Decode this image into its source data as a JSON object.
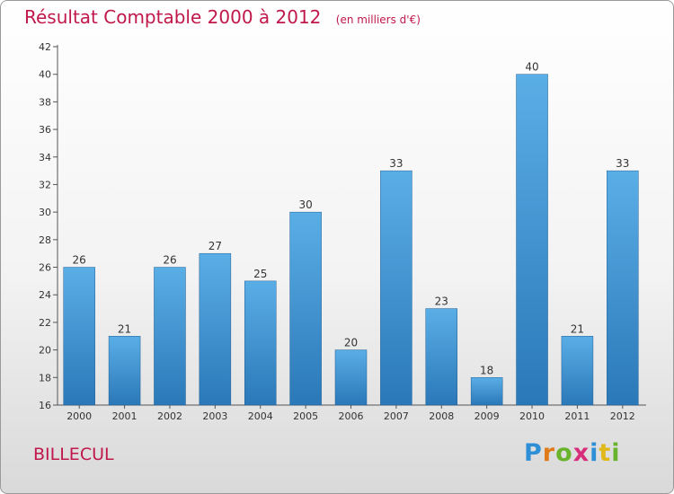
{
  "title": "Résultat Comptable 2000 à 2012",
  "subtitle": "(en milliers d'€)",
  "commune": "BILLECUL",
  "logo": {
    "letters": [
      "P",
      "r",
      "o",
      "x",
      "i",
      "t",
      "i"
    ],
    "colors": [
      "#2e8fd6",
      "#e07b1a",
      "#6ab42d",
      "#d62e7a",
      "#2e8fd6",
      "#e0b81a",
      "#6ab42d"
    ]
  },
  "colors": {
    "bar_top": "#5aaee6",
    "bar_bottom": "#2b78b8",
    "text": "#333333",
    "accent": "#c0184b"
  },
  "chart_data": {
    "type": "bar",
    "title": "Résultat Comptable 2000 à 2012",
    "xlabel": "",
    "ylabel": "",
    "categories": [
      "2000",
      "2001",
      "2002",
      "2003",
      "2004",
      "2005",
      "2006",
      "2007",
      "2008",
      "2009",
      "2010",
      "2011",
      "2012"
    ],
    "values": [
      26,
      21,
      26,
      27,
      25,
      30,
      20,
      33,
      23,
      18,
      40,
      21,
      33
    ],
    "ylim": [
      16,
      42
    ],
    "yticks": [
      16,
      18,
      20,
      22,
      24,
      26,
      28,
      30,
      32,
      34,
      36,
      38,
      40,
      42
    ],
    "grid": false,
    "data_labels": true
  }
}
